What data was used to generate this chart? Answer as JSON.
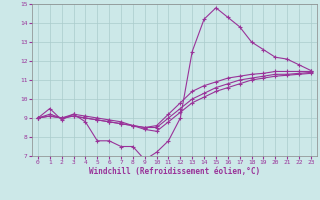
{
  "xlabel": "Windchill (Refroidissement éolien,°C)",
  "background_color": "#cce8e8",
  "grid_color": "#aacccc",
  "line_color": "#993399",
  "xlim": [
    -0.5,
    23.5
  ],
  "ylim": [
    7,
    15
  ],
  "xticks": [
    0,
    1,
    2,
    3,
    4,
    5,
    6,
    7,
    8,
    9,
    10,
    11,
    12,
    13,
    14,
    15,
    16,
    17,
    18,
    19,
    20,
    21,
    22,
    23
  ],
  "yticks": [
    7,
    8,
    9,
    10,
    11,
    12,
    13,
    14,
    15
  ],
  "series": [
    {
      "x": [
        0,
        1,
        2,
        3,
        4,
        5,
        6,
        7,
        8,
        9,
        10,
        11,
        12,
        13,
        14,
        15,
        16,
        17,
        18,
        19,
        20,
        21,
        22,
        23
      ],
      "y": [
        9.0,
        9.5,
        8.9,
        9.2,
        8.8,
        7.8,
        7.8,
        7.5,
        7.5,
        6.8,
        7.2,
        7.8,
        9.0,
        12.5,
        14.2,
        14.8,
        14.3,
        13.8,
        13.0,
        12.6,
        12.2,
        12.1,
        11.8,
        11.5
      ]
    },
    {
      "x": [
        0,
        1,
        2,
        3,
        4,
        5,
        6,
        7,
        8,
        9,
        10,
        11,
        12,
        13,
        14,
        15,
        16,
        17,
        18,
        19,
        20,
        21,
        22,
        23
      ],
      "y": [
        9.0,
        9.2,
        9.0,
        9.2,
        9.1,
        9.0,
        8.9,
        8.8,
        8.6,
        8.5,
        8.6,
        9.2,
        9.8,
        10.4,
        10.7,
        10.9,
        11.1,
        11.2,
        11.3,
        11.35,
        11.45,
        11.45,
        11.45,
        11.45
      ]
    },
    {
      "x": [
        0,
        1,
        2,
        3,
        4,
        5,
        6,
        7,
        8,
        9,
        10,
        11,
        12,
        13,
        14,
        15,
        16,
        17,
        18,
        19,
        20,
        21,
        22,
        23
      ],
      "y": [
        9.0,
        9.1,
        9.0,
        9.1,
        9.0,
        8.9,
        8.8,
        8.7,
        8.6,
        8.5,
        8.5,
        9.0,
        9.5,
        10.0,
        10.3,
        10.6,
        10.8,
        11.0,
        11.1,
        11.2,
        11.3,
        11.3,
        11.35,
        11.4
      ]
    },
    {
      "x": [
        0,
        1,
        2,
        3,
        4,
        5,
        6,
        7,
        8,
        9,
        10,
        11,
        12,
        13,
        14,
        15,
        16,
        17,
        18,
        19,
        20,
        21,
        22,
        23
      ],
      "y": [
        9.0,
        9.1,
        9.0,
        9.1,
        9.0,
        8.9,
        8.8,
        8.7,
        8.6,
        8.4,
        8.3,
        8.8,
        9.3,
        9.8,
        10.1,
        10.4,
        10.6,
        10.8,
        11.0,
        11.1,
        11.2,
        11.25,
        11.3,
        11.35
      ]
    }
  ]
}
